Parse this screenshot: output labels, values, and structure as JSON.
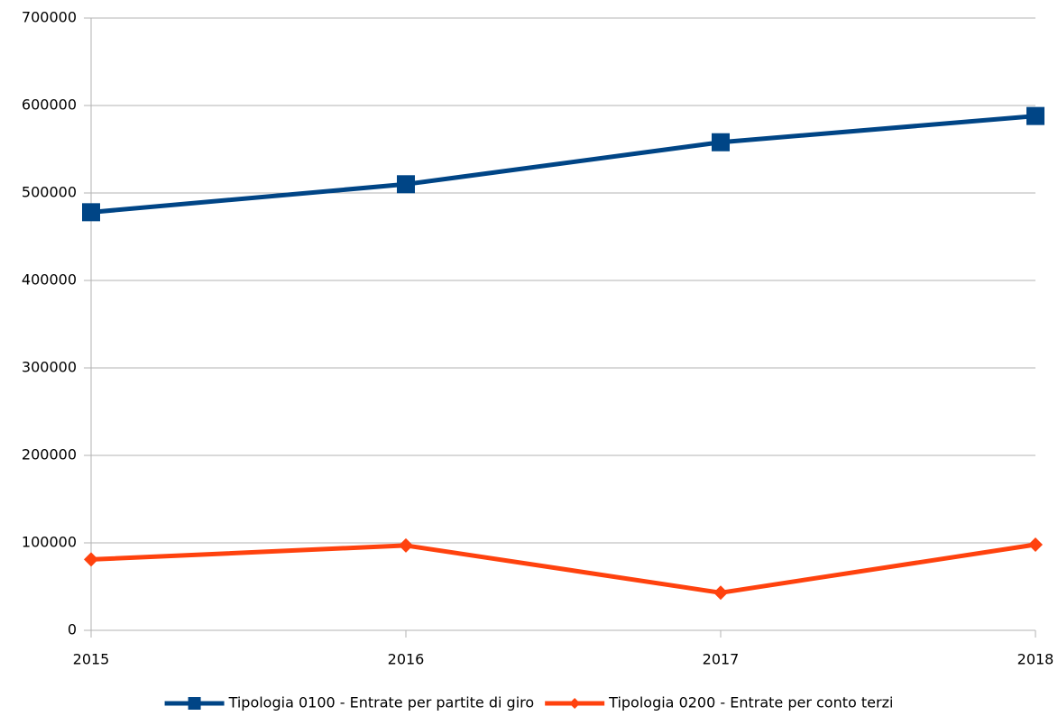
{
  "chart_data": {
    "type": "line",
    "categories": [
      "2015",
      "2016",
      "2017",
      "2018"
    ],
    "series": [
      {
        "name": "Tipologia 0100 - Entrate per partite di giro",
        "color": "#004586",
        "marker": "square",
        "values": [
          478000,
          510000,
          558000,
          588000
        ]
      },
      {
        "name": "Tipologia 0200 - Entrate per conto terzi",
        "color": "#ff420e",
        "marker": "diamond",
        "values": [
          81000,
          97000,
          43000,
          98000
        ]
      }
    ],
    "ylim": [
      0,
      700000
    ],
    "yticks": [
      0,
      100000,
      200000,
      300000,
      400000,
      500000,
      600000,
      700000
    ],
    "grid": true,
    "legend": "bottom"
  }
}
